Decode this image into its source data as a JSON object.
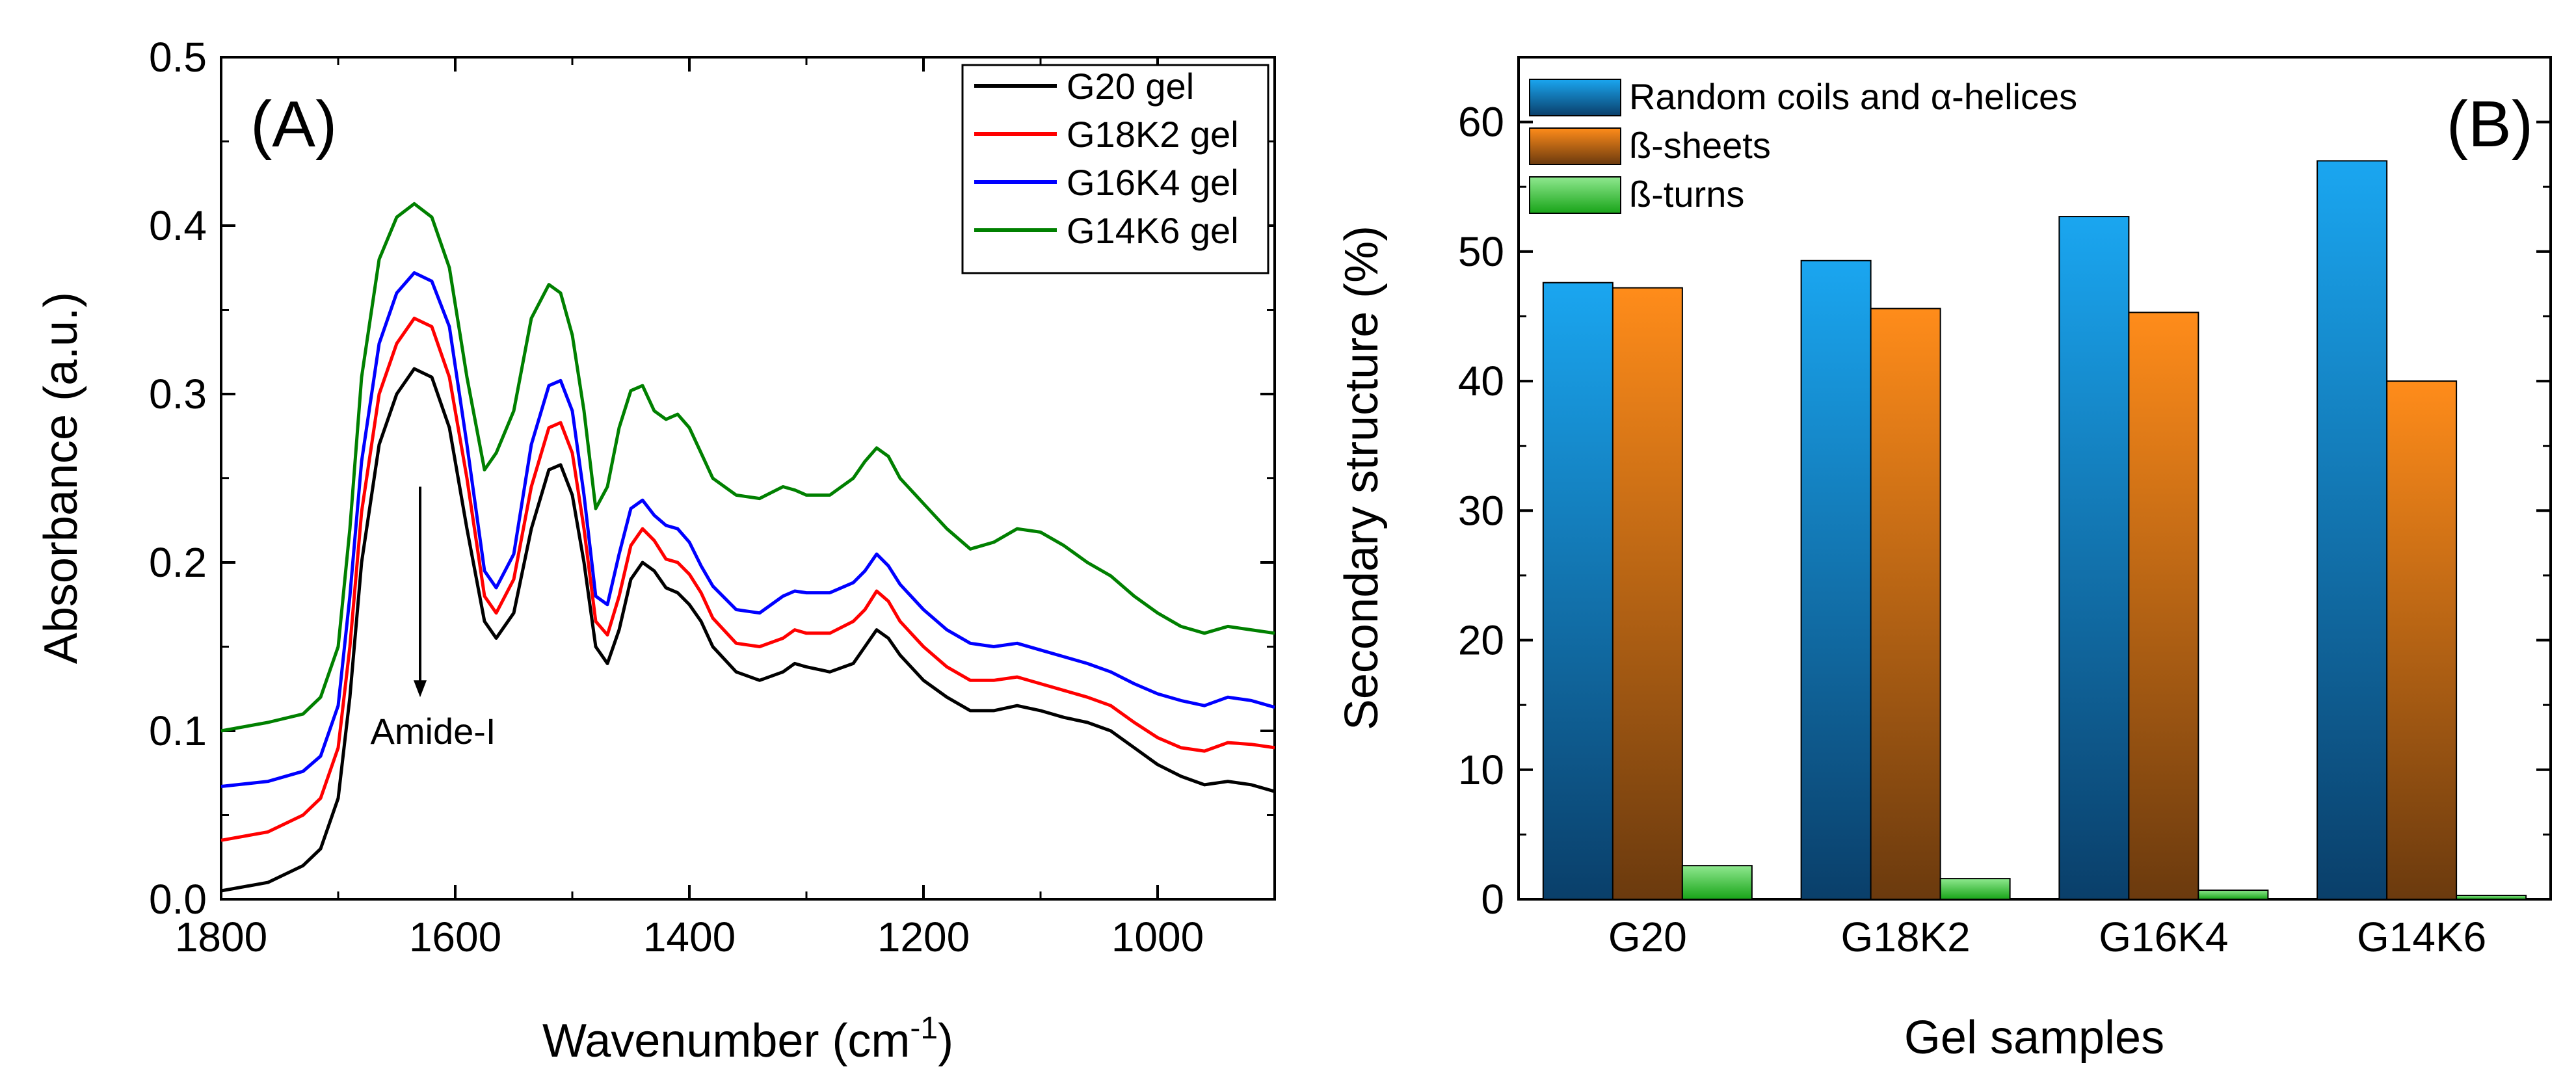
{
  "chart_data": [
    {
      "type": "line",
      "panel_label": "(A)",
      "title": "",
      "xlabel": "Wavenumber (cm",
      "xlabel_sup": "-1",
      "xlabel_end": ")",
      "ylabel": "Absorbance (a.u.)",
      "xlim": [
        1800,
        900
      ],
      "ylim": [
        0.0,
        0.5
      ],
      "x_ticks": [
        1800,
        1600,
        1400,
        1200,
        1000
      ],
      "x_tick_labels": [
        "1800",
        "1600",
        "1400",
        "1200",
        "1000"
      ],
      "y_ticks": [
        0.0,
        0.1,
        0.2,
        0.3,
        0.4,
        0.5
      ],
      "y_tick_labels": [
        "0.0",
        "0.1",
        "0.2",
        "0.3",
        "0.4",
        "0.5"
      ],
      "legend": [
        "G20 gel",
        "G18K2 gel",
        "G16K4 gel",
        "G14K6 gel"
      ],
      "legend_position": "top-right",
      "annotation": {
        "text": "Amide-I",
        "x": 1630,
        "y_from": 0.245,
        "y_to": 0.12
      },
      "series": [
        {
          "name": "G20 gel",
          "color": "#000000",
          "x": [
            1800,
            1760,
            1730,
            1715,
            1700,
            1690,
            1680,
            1665,
            1650,
            1635,
            1620,
            1605,
            1590,
            1575,
            1565,
            1550,
            1535,
            1520,
            1510,
            1500,
            1490,
            1480,
            1470,
            1460,
            1450,
            1440,
            1430,
            1420,
            1410,
            1400,
            1390,
            1380,
            1360,
            1340,
            1320,
            1310,
            1300,
            1280,
            1260,
            1250,
            1240,
            1230,
            1220,
            1200,
            1180,
            1160,
            1140,
            1120,
            1100,
            1080,
            1060,
            1040,
            1020,
            1000,
            980,
            960,
            940,
            920,
            900
          ],
          "y": [
            0.005,
            0.01,
            0.02,
            0.03,
            0.06,
            0.12,
            0.2,
            0.27,
            0.3,
            0.315,
            0.31,
            0.28,
            0.22,
            0.165,
            0.155,
            0.17,
            0.22,
            0.255,
            0.258,
            0.24,
            0.2,
            0.15,
            0.14,
            0.16,
            0.19,
            0.2,
            0.195,
            0.185,
            0.182,
            0.175,
            0.165,
            0.15,
            0.135,
            0.13,
            0.135,
            0.14,
            0.138,
            0.135,
            0.14,
            0.15,
            0.16,
            0.155,
            0.145,
            0.13,
            0.12,
            0.112,
            0.112,
            0.115,
            0.112,
            0.108,
            0.105,
            0.1,
            0.09,
            0.08,
            0.073,
            0.068,
            0.07,
            0.068,
            0.064
          ]
        },
        {
          "name": "G18K2 gel",
          "color": "#ff0000",
          "x": [
            1800,
            1760,
            1730,
            1715,
            1700,
            1690,
            1680,
            1665,
            1650,
            1635,
            1620,
            1605,
            1590,
            1575,
            1565,
            1550,
            1535,
            1520,
            1510,
            1500,
            1490,
            1480,
            1470,
            1460,
            1450,
            1440,
            1430,
            1420,
            1410,
            1400,
            1390,
            1380,
            1360,
            1340,
            1320,
            1310,
            1300,
            1280,
            1260,
            1250,
            1240,
            1230,
            1220,
            1200,
            1180,
            1160,
            1140,
            1120,
            1100,
            1080,
            1060,
            1040,
            1020,
            1000,
            980,
            960,
            940,
            920,
            900
          ],
          "y": [
            0.035,
            0.04,
            0.05,
            0.06,
            0.09,
            0.15,
            0.23,
            0.3,
            0.33,
            0.345,
            0.34,
            0.31,
            0.25,
            0.18,
            0.17,
            0.19,
            0.245,
            0.28,
            0.283,
            0.265,
            0.22,
            0.165,
            0.157,
            0.18,
            0.21,
            0.22,
            0.213,
            0.202,
            0.2,
            0.193,
            0.182,
            0.167,
            0.152,
            0.15,
            0.155,
            0.16,
            0.158,
            0.158,
            0.165,
            0.172,
            0.183,
            0.177,
            0.165,
            0.15,
            0.138,
            0.13,
            0.13,
            0.132,
            0.128,
            0.124,
            0.12,
            0.115,
            0.105,
            0.096,
            0.09,
            0.088,
            0.093,
            0.092,
            0.09
          ]
        },
        {
          "name": "G16K4 gel",
          "color": "#0000ff",
          "x": [
            1800,
            1760,
            1730,
            1715,
            1700,
            1690,
            1680,
            1665,
            1650,
            1635,
            1620,
            1605,
            1590,
            1575,
            1565,
            1550,
            1535,
            1520,
            1510,
            1500,
            1490,
            1480,
            1470,
            1460,
            1450,
            1440,
            1430,
            1420,
            1410,
            1400,
            1390,
            1380,
            1360,
            1340,
            1320,
            1310,
            1300,
            1280,
            1260,
            1250,
            1240,
            1230,
            1220,
            1200,
            1180,
            1160,
            1140,
            1120,
            1100,
            1080,
            1060,
            1040,
            1020,
            1000,
            980,
            960,
            940,
            920,
            900
          ],
          "y": [
            0.067,
            0.07,
            0.076,
            0.085,
            0.115,
            0.18,
            0.26,
            0.33,
            0.36,
            0.372,
            0.367,
            0.34,
            0.27,
            0.195,
            0.185,
            0.205,
            0.27,
            0.305,
            0.308,
            0.29,
            0.24,
            0.18,
            0.175,
            0.205,
            0.232,
            0.237,
            0.228,
            0.222,
            0.22,
            0.212,
            0.198,
            0.186,
            0.172,
            0.17,
            0.18,
            0.183,
            0.182,
            0.182,
            0.188,
            0.195,
            0.205,
            0.198,
            0.187,
            0.172,
            0.16,
            0.152,
            0.15,
            0.152,
            0.148,
            0.144,
            0.14,
            0.135,
            0.128,
            0.122,
            0.118,
            0.115,
            0.12,
            0.118,
            0.114
          ]
        },
        {
          "name": "G14K6 gel",
          "color": "#008000",
          "x": [
            1800,
            1760,
            1730,
            1715,
            1700,
            1690,
            1680,
            1665,
            1650,
            1635,
            1620,
            1605,
            1590,
            1575,
            1565,
            1550,
            1535,
            1520,
            1510,
            1500,
            1490,
            1480,
            1470,
            1460,
            1450,
            1440,
            1430,
            1420,
            1410,
            1400,
            1390,
            1380,
            1360,
            1340,
            1320,
            1310,
            1300,
            1280,
            1260,
            1250,
            1240,
            1230,
            1220,
            1200,
            1180,
            1160,
            1140,
            1120,
            1100,
            1080,
            1060,
            1040,
            1020,
            1000,
            980,
            960,
            940,
            920,
            900
          ],
          "y": [
            0.1,
            0.105,
            0.11,
            0.12,
            0.15,
            0.22,
            0.31,
            0.38,
            0.405,
            0.413,
            0.405,
            0.375,
            0.31,
            0.255,
            0.265,
            0.29,
            0.345,
            0.365,
            0.36,
            0.335,
            0.29,
            0.232,
            0.245,
            0.28,
            0.302,
            0.305,
            0.29,
            0.285,
            0.288,
            0.28,
            0.265,
            0.25,
            0.24,
            0.238,
            0.245,
            0.243,
            0.24,
            0.24,
            0.25,
            0.26,
            0.268,
            0.263,
            0.25,
            0.235,
            0.22,
            0.208,
            0.212,
            0.22,
            0.218,
            0.21,
            0.2,
            0.192,
            0.18,
            0.17,
            0.162,
            0.158,
            0.162,
            0.16,
            0.158
          ]
        }
      ]
    },
    {
      "type": "bar",
      "panel_label": "(B)",
      "title": "",
      "xlabel": "Gel samples",
      "ylabel": "Secondary structure (%)",
      "ylim": [
        0,
        65
      ],
      "y_ticks": [
        0,
        10,
        20,
        30,
        40,
        50,
        60
      ],
      "y_tick_labels": [
        "0",
        "10",
        "20",
        "30",
        "40",
        "50",
        "60"
      ],
      "categories": [
        "G20",
        "G18K2",
        "G16K4",
        "G14K6"
      ],
      "legend_position": "top-left",
      "series": [
        {
          "name": "Random coils and α-helices",
          "color_top": "#1aa6f0",
          "color_bottom": "#0a3f6a",
          "values": [
            47.6,
            49.3,
            52.7,
            57.0
          ]
        },
        {
          "name": "ß-sheets",
          "color_top": "#ff8c1a",
          "color_bottom": "#6b3a0e",
          "values": [
            47.2,
            45.6,
            45.3,
            40.0
          ]
        },
        {
          "name": "ß-turns",
          "color_top": "#8fe88f",
          "color_bottom": "#18a418",
          "values": [
            2.6,
            1.6,
            0.7,
            0.3
          ]
        }
      ]
    }
  ]
}
